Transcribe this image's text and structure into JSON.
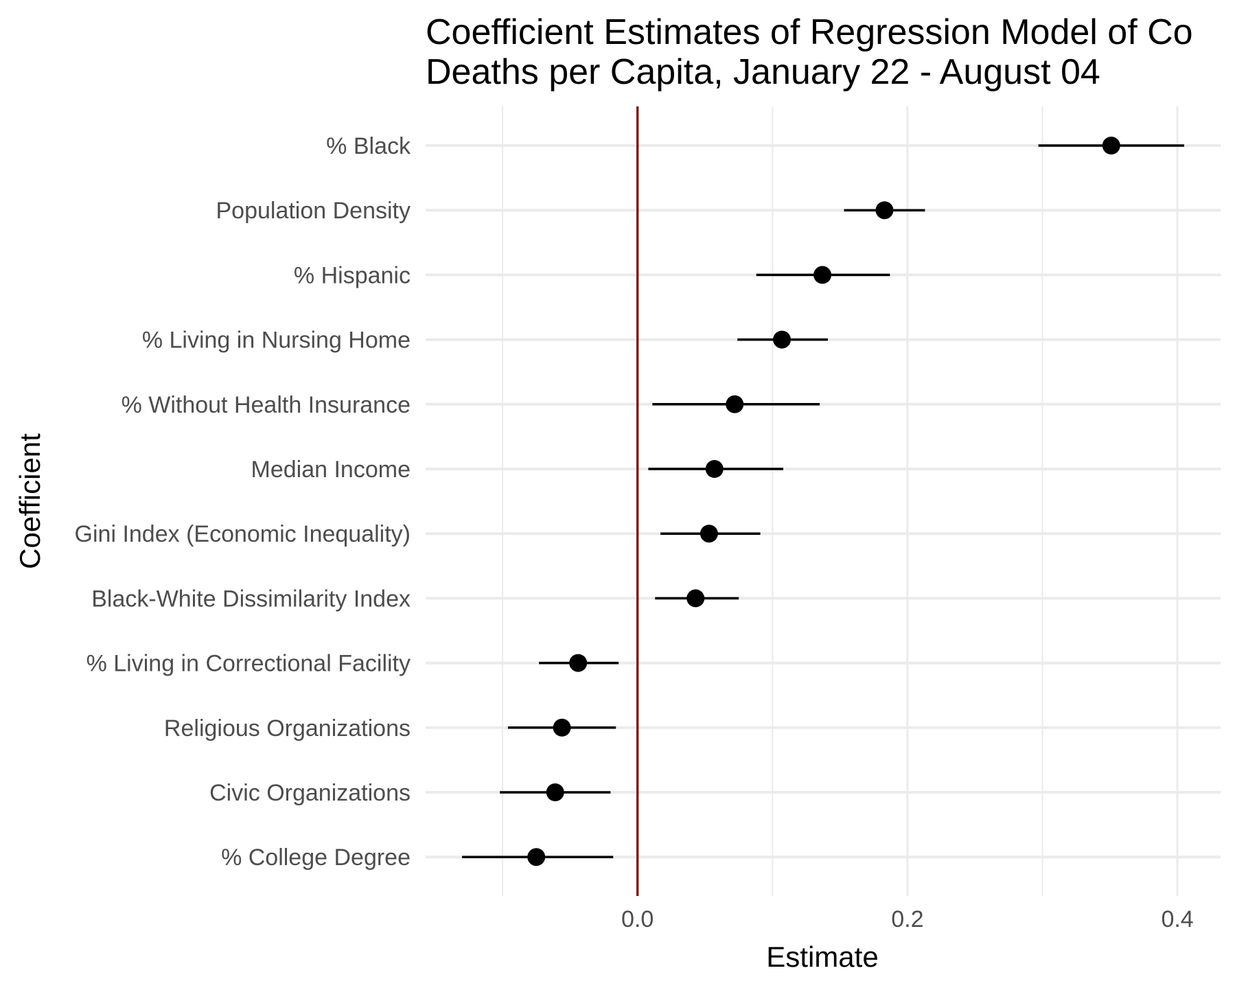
{
  "chart_data": {
    "type": "scatter",
    "subtype": "coefficient-plot-with-error-bars",
    "title_lines": [
      "Coefficient Estimates of Regression Model of Co",
      "Deaths per Capita, January 22 - August 04"
    ],
    "xlabel": "Estimate",
    "ylabel": "Coefficient",
    "xlim": [
      -0.157,
      0.432
    ],
    "x_ticks": [
      0.0,
      0.2,
      0.4
    ],
    "x_tick_labels": [
      "0.0",
      "0.2",
      "0.4"
    ],
    "x_minor_gridlines": [
      -0.1,
      0.1,
      0.3
    ],
    "reference_line_x": 0.0,
    "grid": true,
    "legend": "none",
    "colors": {
      "point": "#000000",
      "errorbar": "#000000",
      "reference_line": "#7a1f12",
      "grid_major": "#ebebeb",
      "grid_minor": "#ebebeb",
      "label_text": "#4d4d4d",
      "title_text": "#000000"
    },
    "categories": [
      "% Black",
      "Population Density",
      "% Hispanic",
      "% Living in Nursing Home",
      "% Without Health Insurance",
      "Median Income",
      "Gini Index (Economic Inequality)",
      "Black-White Dissimilarity Index",
      "% Living in Correctional Facility",
      "Religious Organizations",
      "Civic Organizations",
      "% College Degree"
    ],
    "estimates": [
      0.351,
      0.183,
      0.137,
      0.107,
      0.072,
      0.057,
      0.053,
      0.043,
      -0.044,
      -0.056,
      -0.061,
      -0.075
    ],
    "lower": [
      0.297,
      0.153,
      0.088,
      0.074,
      0.011,
      0.008,
      0.017,
      0.013,
      -0.073,
      -0.096,
      -0.102,
      -0.13
    ],
    "upper": [
      0.405,
      0.213,
      0.187,
      0.141,
      0.135,
      0.108,
      0.091,
      0.075,
      -0.014,
      -0.016,
      -0.02,
      -0.018
    ]
  }
}
